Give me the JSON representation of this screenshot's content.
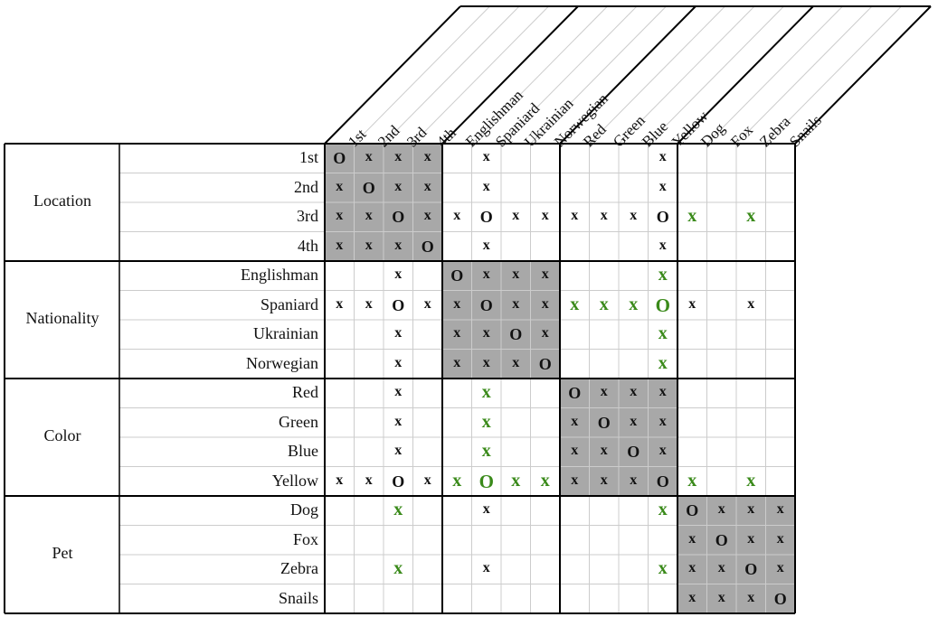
{
  "categories": [
    {
      "name": "Location",
      "items": [
        "1st",
        "2nd",
        "3rd",
        "4th"
      ]
    },
    {
      "name": "Nationality",
      "items": [
        "Englishman",
        "Spaniard",
        "Ukrainian",
        "Norwegian"
      ]
    },
    {
      "name": "Color",
      "items": [
        "Red",
        "Green",
        "Blue",
        "Yellow"
      ]
    },
    {
      "name": "Pet",
      "items": [
        "Dog",
        "Fox",
        "Zebra",
        "Snails"
      ]
    }
  ],
  "colors": {
    "shade": "#a8a8a8",
    "green_mark": "#3a8a1a",
    "grid_line": "#cccccc",
    "border": "#000000"
  },
  "grid": [
    [
      "O",
      "x",
      "x",
      "x",
      "",
      "x",
      "",
      "",
      "",
      "",
      "",
      "x",
      "",
      "",
      "",
      ""
    ],
    [
      "x",
      "O",
      "x",
      "x",
      "",
      "x",
      "",
      "",
      "",
      "",
      "",
      "x",
      "",
      "",
      "",
      ""
    ],
    [
      "x",
      "x",
      "O",
      "x",
      "x",
      "O",
      "x",
      "x",
      "x",
      "x",
      "x",
      "O",
      "gx",
      "",
      "gx",
      ""
    ],
    [
      "x",
      "x",
      "x",
      "O",
      "",
      "x",
      "",
      "",
      "",
      "",
      "",
      "x",
      "",
      "",
      "",
      ""
    ],
    [
      "",
      "",
      "x",
      "",
      "O",
      "x",
      "x",
      "x",
      "",
      "",
      "",
      "gx",
      "",
      "",
      "",
      ""
    ],
    [
      "x",
      "x",
      "O",
      "x",
      "x",
      "O",
      "x",
      "x",
      "gx",
      "gx",
      "gx",
      "gO",
      "x",
      "",
      "x",
      ""
    ],
    [
      "",
      "",
      "x",
      "",
      "x",
      "x",
      "O",
      "x",
      "",
      "",
      "",
      "gx",
      "",
      "",
      "",
      ""
    ],
    [
      "",
      "",
      "x",
      "",
      "x",
      "x",
      "x",
      "O",
      "",
      "",
      "",
      "gx",
      "",
      "",
      "",
      ""
    ],
    [
      "",
      "",
      "x",
      "",
      "",
      "gx",
      "",
      "",
      "O",
      "x",
      "x",
      "x",
      "",
      "",
      "",
      ""
    ],
    [
      "",
      "",
      "x",
      "",
      "",
      "gx",
      "",
      "",
      "x",
      "O",
      "x",
      "x",
      "",
      "",
      "",
      ""
    ],
    [
      "",
      "",
      "x",
      "",
      "",
      "gx",
      "",
      "",
      "x",
      "x",
      "O",
      "x",
      "",
      "",
      "",
      ""
    ],
    [
      "x",
      "x",
      "O",
      "x",
      "gx",
      "gO",
      "gx",
      "gx",
      "x",
      "x",
      "x",
      "O",
      "gx",
      "",
      "gx",
      ""
    ],
    [
      "",
      "",
      "gx",
      "",
      "",
      "x",
      "",
      "",
      "",
      "",
      "",
      "gx",
      "O",
      "x",
      "x",
      "x"
    ],
    [
      "",
      "",
      "",
      "",
      "",
      "",
      "",
      "",
      "",
      "",
      "",
      "",
      "x",
      "O",
      "x",
      "x"
    ],
    [
      "",
      "",
      "gx",
      "",
      "",
      "x",
      "",
      "",
      "",
      "",
      "",
      "gx",
      "x",
      "x",
      "O",
      "x"
    ],
    [
      "",
      "",
      "",
      "",
      "",
      "",
      "",
      "",
      "",
      "",
      "",
      "",
      "x",
      "x",
      "x",
      "O"
    ]
  ]
}
